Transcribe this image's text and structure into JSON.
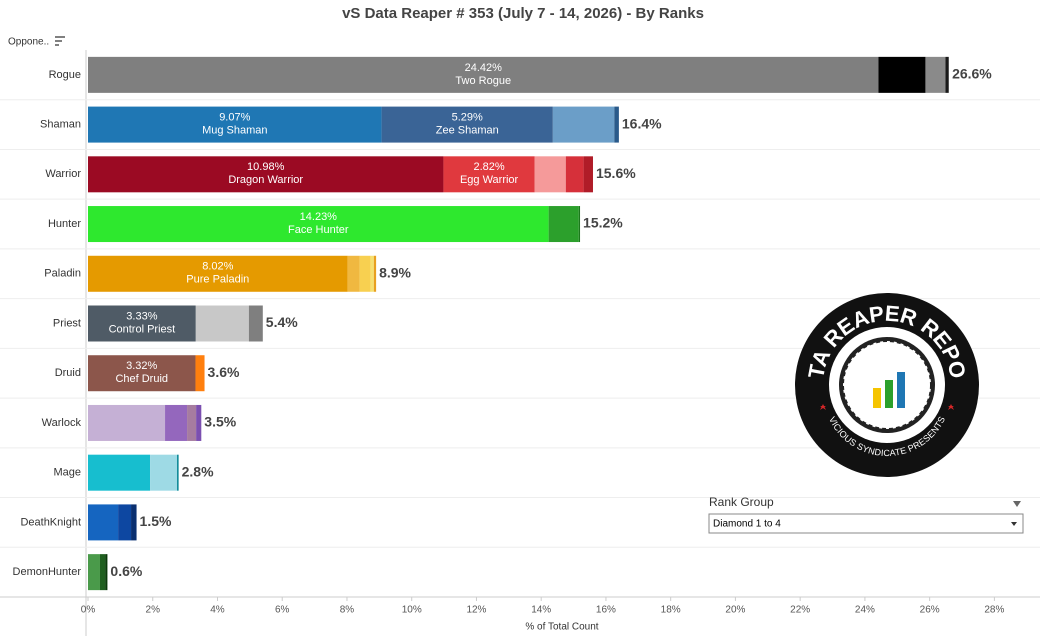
{
  "chart_data": {
    "type": "stacked-hbar",
    "title": "vS Data Reaper # 353 (July 7 - 14, 2026) - By Ranks",
    "row_header": "Oppone..",
    "xlabel": "% of Total Count",
    "xlim": [
      0,
      29.1
    ],
    "xticks": [
      {
        "value": 0,
        "label": "0%"
      },
      {
        "value": 2,
        "label": "2%"
      },
      {
        "value": 4,
        "label": "4%"
      },
      {
        "value": 6,
        "label": "6%"
      },
      {
        "value": 8,
        "label": "8%"
      },
      {
        "value": 10,
        "label": "10%"
      },
      {
        "value": 12,
        "label": "12%"
      },
      {
        "value": 14,
        "label": "14%"
      },
      {
        "value": 16,
        "label": "16%"
      },
      {
        "value": 18,
        "label": "18%"
      },
      {
        "value": 20,
        "label": "20%"
      },
      {
        "value": 22,
        "label": "22%"
      },
      {
        "value": 24,
        "label": "24%"
      },
      {
        "value": 26,
        "label": "26%"
      },
      {
        "value": 28,
        "label": "28%"
      }
    ],
    "bars": [
      {
        "category": "Rogue",
        "total": 26.6,
        "total_label": "26.6%",
        "segments": [
          {
            "value": 24.42,
            "value_label": "24.42%",
            "name": "Two Rogue",
            "color": "#7f7f7f"
          },
          {
            "value": 1.45,
            "color": "#000000"
          },
          {
            "value": 0.62,
            "color": "#8a8a8a"
          },
          {
            "value": 0.1,
            "color": "#1a1a1a"
          }
        ]
      },
      {
        "category": "Shaman",
        "total": 16.4,
        "total_label": "16.4%",
        "segments": [
          {
            "value": 9.07,
            "value_label": "9.07%",
            "name": "Mug Shaman",
            "color": "#1f77b4"
          },
          {
            "value": 5.29,
            "value_label": "5.29%",
            "name": "Zee Shaman",
            "color": "#3a6496"
          },
          {
            "value": 1.9,
            "color": "#6b9ec8"
          },
          {
            "value": 0.14,
            "color": "#2a5a8a"
          }
        ]
      },
      {
        "category": "Warrior",
        "total": 15.6,
        "total_label": "15.6%",
        "segments": [
          {
            "value": 10.98,
            "value_label": "10.98%",
            "name": "Dragon Warrior",
            "color": "#9b0a23"
          },
          {
            "value": 2.82,
            "value_label": "2.82%",
            "name": "Egg Warrior",
            "color": "#e0393e"
          },
          {
            "value": 0.96,
            "color": "#f59a9a"
          },
          {
            "value": 0.55,
            "color": "#d6303a"
          },
          {
            "value": 0.29,
            "color": "#b01c28"
          }
        ]
      },
      {
        "category": "Hunter",
        "total": 15.2,
        "total_label": "15.2%",
        "segments": [
          {
            "value": 14.23,
            "value_label": "14.23%",
            "name": "Face Hunter",
            "color": "#2ee82e"
          },
          {
            "value": 0.93,
            "color": "#2ca02c"
          },
          {
            "value": 0.04,
            "color": "#1a7a1a"
          }
        ]
      },
      {
        "category": "Paladin",
        "total": 8.9,
        "total_label": "8.9%",
        "segments": [
          {
            "value": 8.02,
            "value_label": "8.02%",
            "name": "Pure Paladin",
            "color": "#e59a00"
          },
          {
            "value": 0.37,
            "color": "#f0b840"
          },
          {
            "value": 0.34,
            "color": "#f8d050"
          },
          {
            "value": 0.1,
            "color": "#f6e070"
          },
          {
            "value": 0.07,
            "color": "#e8a020"
          }
        ]
      },
      {
        "category": "Priest",
        "total": 5.4,
        "total_label": "5.4%",
        "segments": [
          {
            "value": 3.33,
            "value_label": "3.33%",
            "name": "Control Priest",
            "color": "#4f5b66"
          },
          {
            "value": 1.64,
            "color": "#c8c8c8"
          },
          {
            "value": 0.43,
            "color": "#7f7f7f"
          }
        ]
      },
      {
        "category": "Druid",
        "total": 3.6,
        "total_label": "3.6%",
        "segments": [
          {
            "value": 3.32,
            "value_label": "3.32%",
            "name": "Chef Druid",
            "color": "#8c564b"
          },
          {
            "value": 0.28,
            "color": "#ff7f0e"
          }
        ]
      },
      {
        "category": "Warlock",
        "total": 3.5,
        "total_label": "3.5%",
        "segments": [
          {
            "value": 2.38,
            "color": "#c5b0d5"
          },
          {
            "value": 0.68,
            "color": "#9467bd"
          },
          {
            "value": 0.28,
            "color": "#a67ca0"
          },
          {
            "value": 0.16,
            "color": "#7b4fb0"
          }
        ]
      },
      {
        "category": "Mage",
        "total": 2.8,
        "total_label": "2.8%",
        "segments": [
          {
            "value": 1.92,
            "color": "#17becf"
          },
          {
            "value": 0.83,
            "color": "#9edae5"
          },
          {
            "value": 0.05,
            "color": "#0f8a98"
          }
        ]
      },
      {
        "category": "DeathKnight",
        "total": 1.5,
        "total_label": "1.5%",
        "segments": [
          {
            "value": 0.93,
            "color": "#1565c0"
          },
          {
            "value": 0.4,
            "color": "#0d47a1"
          },
          {
            "value": 0.17,
            "color": "#0a2f70"
          }
        ]
      },
      {
        "category": "DemonHunter",
        "total": 0.6,
        "total_label": "0.6%",
        "segments": [
          {
            "value": 0.37,
            "color": "#4a9a4a"
          },
          {
            "value": 0.16,
            "color": "#1f5f1f"
          },
          {
            "value": 0.07,
            "color": "#0a3a0a"
          }
        ]
      }
    ]
  },
  "filter": {
    "label": "Rank Group",
    "value": "Diamond 1 to 4"
  },
  "logo": {
    "title": "DATA REAPER REPORT",
    "subtitle": "VICIOUS SYNDICATE PRESENTS"
  }
}
